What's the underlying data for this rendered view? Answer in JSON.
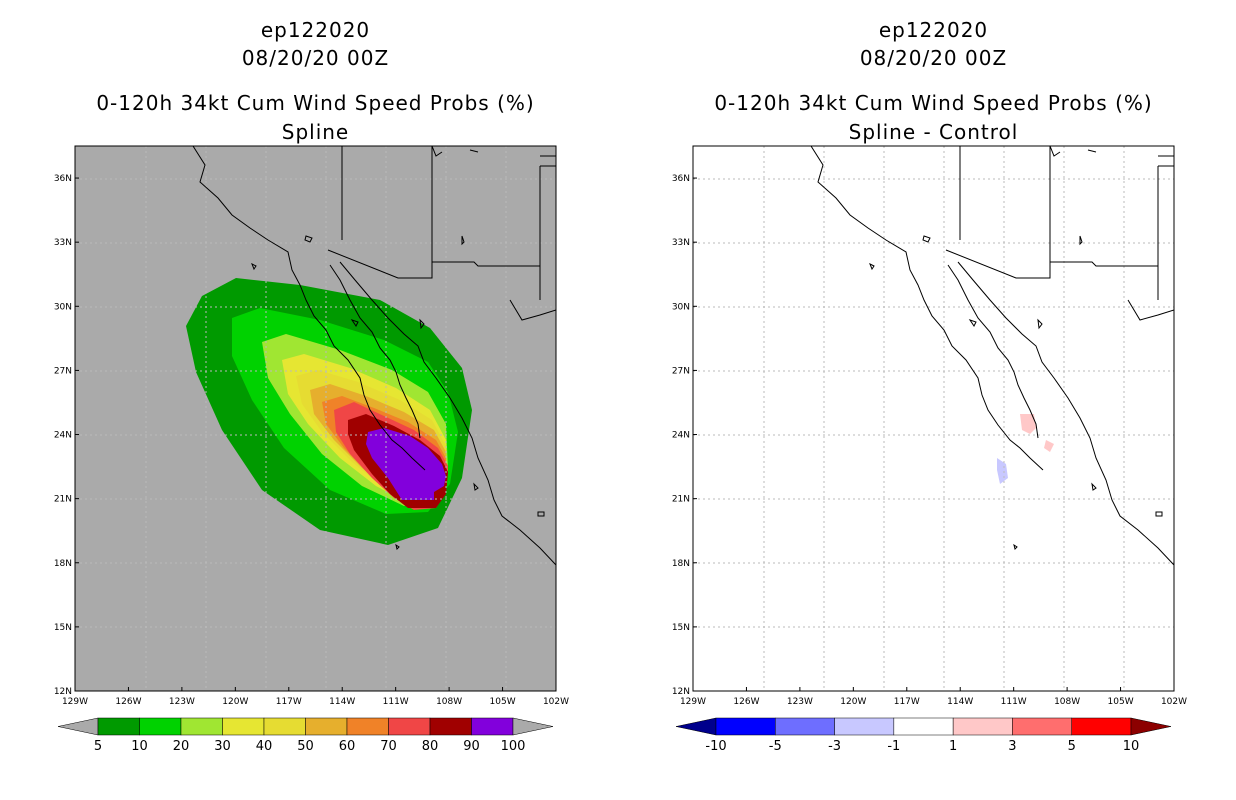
{
  "panels": [
    {
      "storm": "ep122020",
      "date": "08/20/20 00Z",
      "product": "0-120h 34kt Cum Wind Speed Probs (%)",
      "variant": "Spline",
      "background": "#aaaaaa",
      "colorbar": {
        "labels": [
          "5",
          "10",
          "20",
          "30",
          "40",
          "50",
          "60",
          "70",
          "80",
          "90",
          "100"
        ],
        "colors": [
          "#aaaaaa",
          "#009a00",
          "#00d200",
          "#a0e632",
          "#e6e632",
          "#e6dc32",
          "#e6af2d",
          "#f08228",
          "#f04646",
          "#a00000",
          "#8200dc",
          "#aaaaaa"
        ]
      }
    },
    {
      "storm": "ep122020",
      "date": "08/20/20 00Z",
      "product": "0-120h 34kt Cum Wind Speed Probs (%)",
      "variant": "Spline - Control",
      "background": "#ffffff",
      "colorbar": {
        "labels": [
          "-10",
          "-5",
          "-3",
          "-1",
          "1",
          "3",
          "5",
          "10"
        ],
        "colors": [
          "#00008c",
          "#0000ff",
          "#6e6eff",
          "#c8c8ff",
          "#ffffff",
          "#ffc8c8",
          "#ff6e6e",
          "#ff0000",
          "#8c0000"
        ]
      }
    }
  ],
  "axes": {
    "lon_labels": [
      "129W",
      "126W",
      "123W",
      "120W",
      "117W",
      "114W",
      "111W",
      "108W",
      "105W",
      "102W"
    ],
    "lat_labels": [
      "12N",
      "15N",
      "18N",
      "21N",
      "24N",
      "27N",
      "30N",
      "33N",
      "36N"
    ],
    "lon_range": [
      -129,
      -102
    ],
    "lat_range": [
      12,
      37.5
    ]
  }
}
